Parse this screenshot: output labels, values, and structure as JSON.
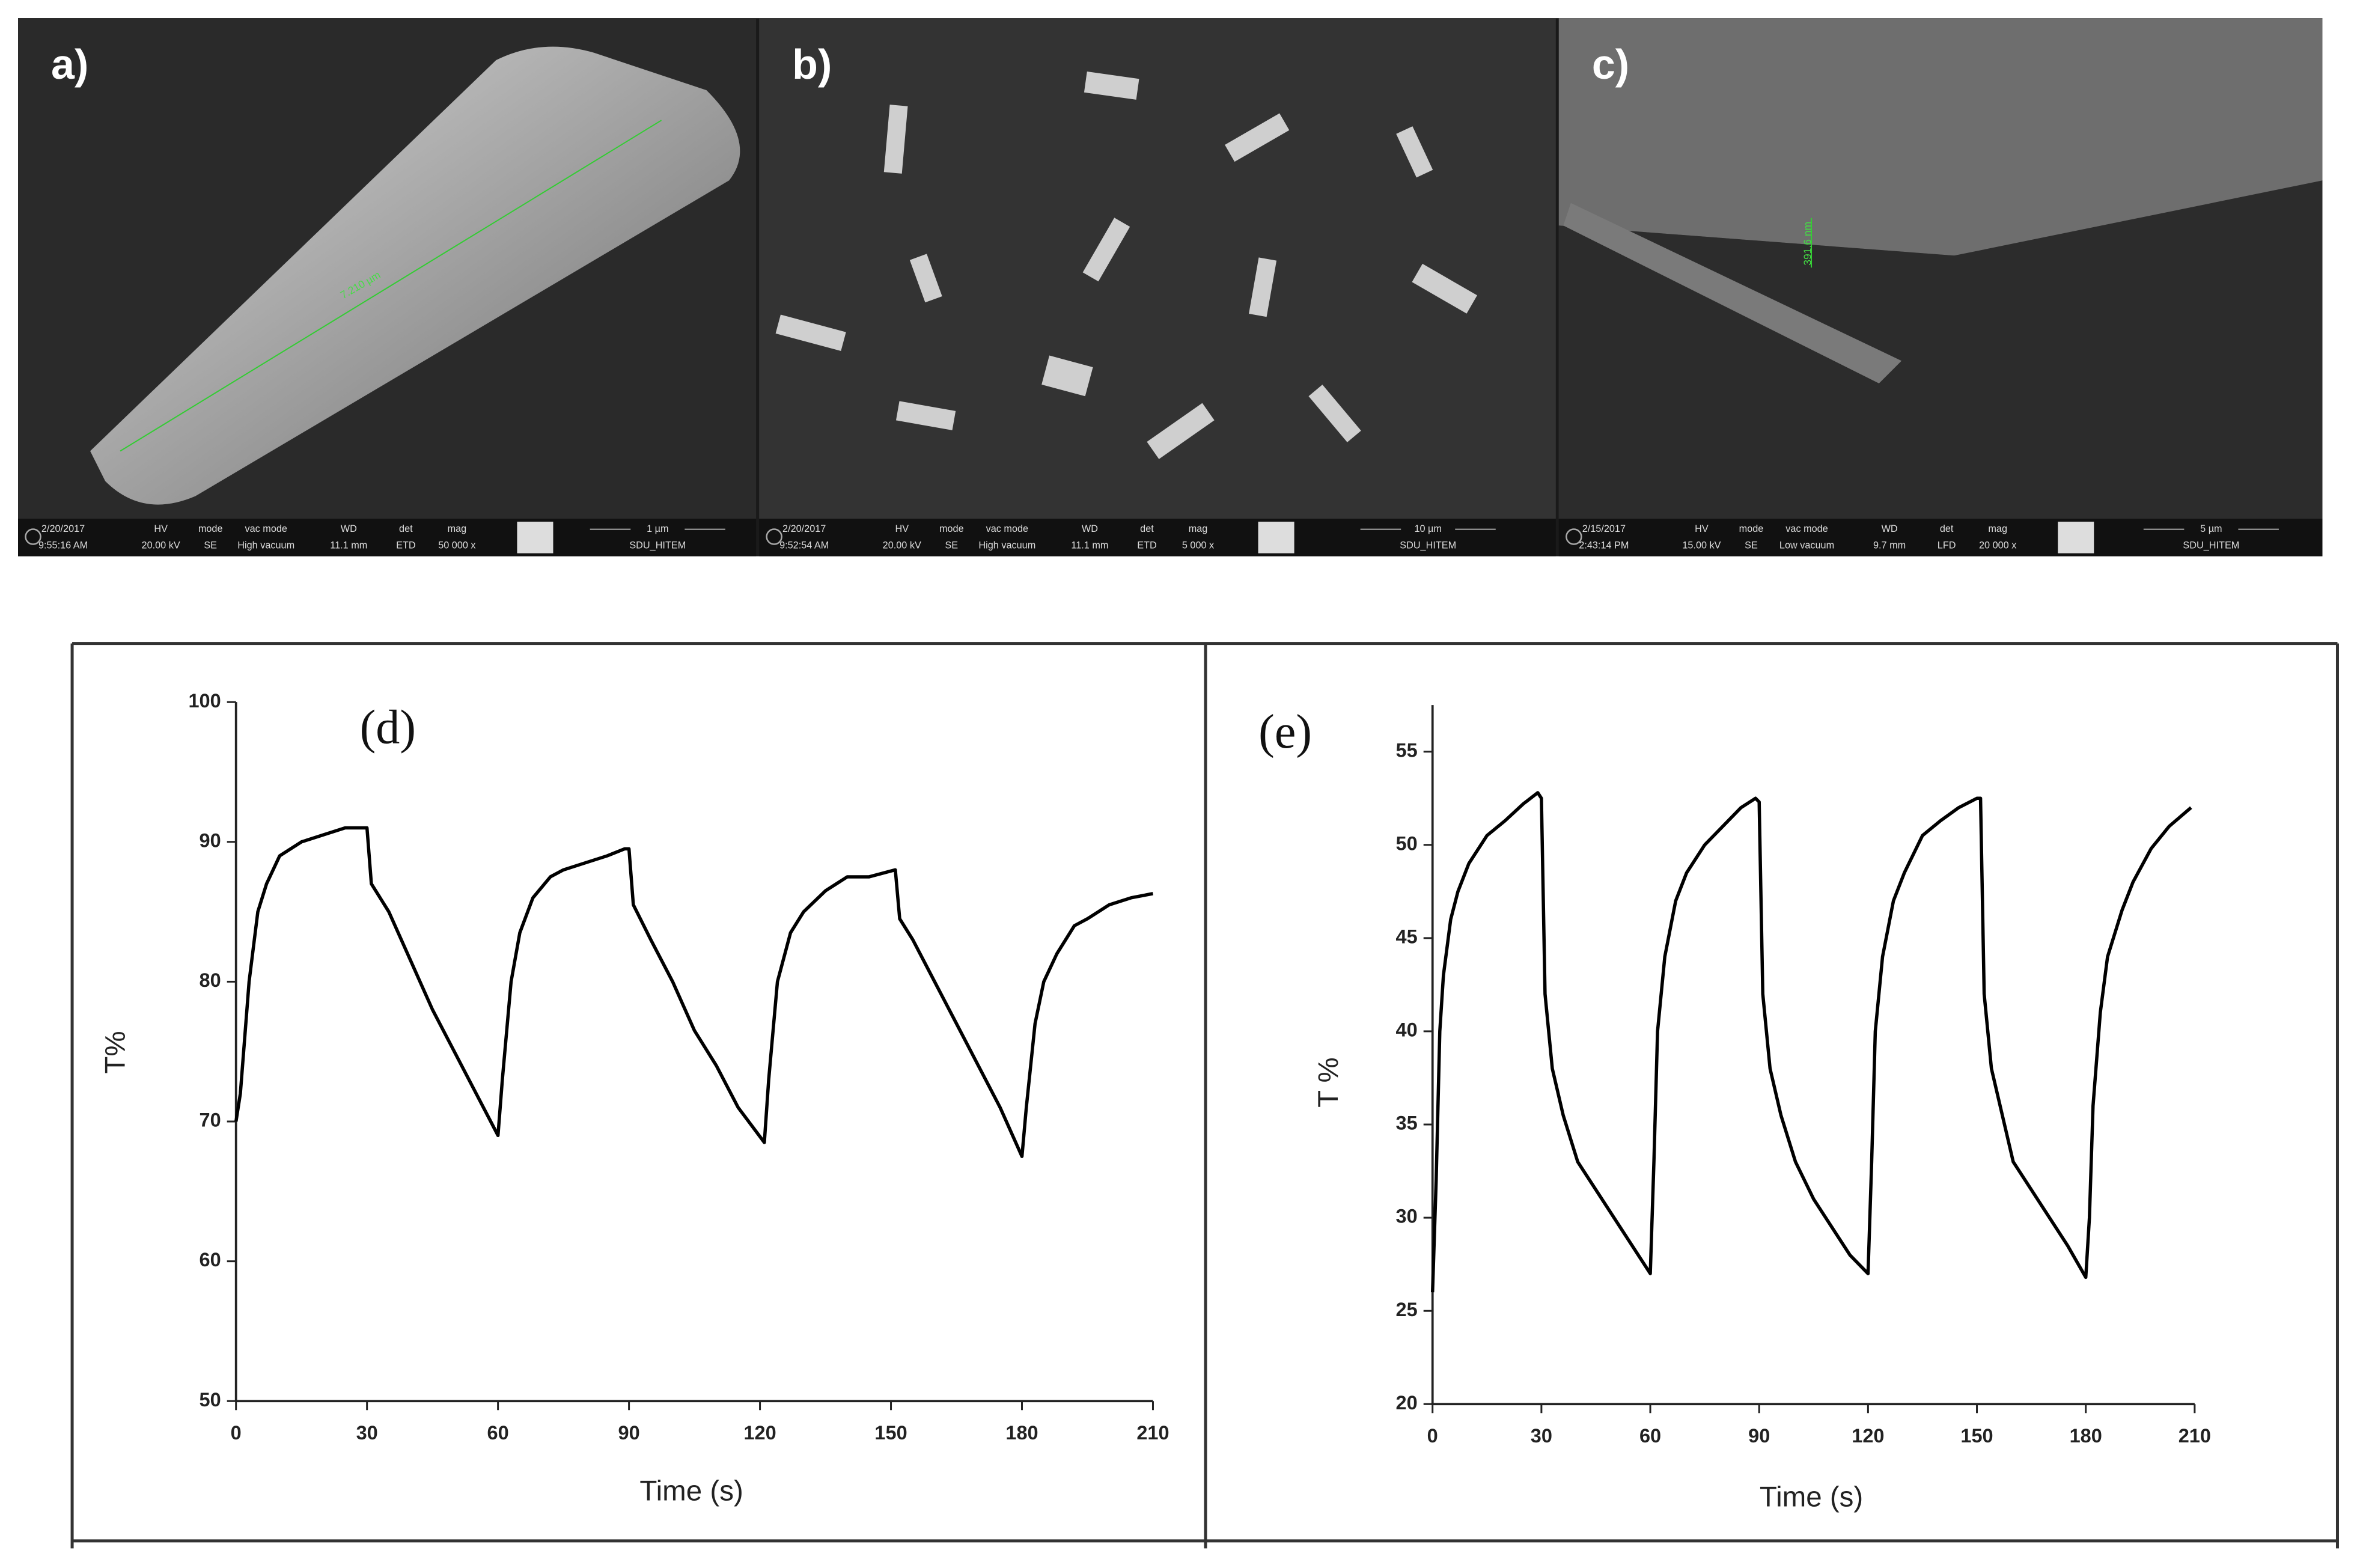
{
  "panels": [
    {
      "label": "a)",
      "measurement": "7.210 µm",
      "databar": [
        {
          "top": "2/20/2017",
          "bottom": "9:55:16 AM"
        },
        {
          "top": "HV",
          "bottom": "20.00 kV"
        },
        {
          "top": "mode",
          "bottom": "SE"
        },
        {
          "top": "vac mode",
          "bottom": "High vacuum"
        },
        {
          "top": "WD",
          "bottom": "11.1 mm"
        },
        {
          "top": "det",
          "bottom": "ETD"
        },
        {
          "top": "mag",
          "bottom": "50 000 x"
        }
      ],
      "scale": "1 µm",
      "lab": "SDU_HITEM"
    },
    {
      "label": "b)",
      "databar": [
        {
          "top": "2/20/2017",
          "bottom": "9:52:54 AM"
        },
        {
          "top": "HV",
          "bottom": "20.00 kV"
        },
        {
          "top": "mode",
          "bottom": "SE"
        },
        {
          "top": "vac mode",
          "bottom": "High vacuum"
        },
        {
          "top": "WD",
          "bottom": "11.1 mm"
        },
        {
          "top": "det",
          "bottom": "ETD"
        },
        {
          "top": "mag",
          "bottom": "5 000 x"
        }
      ],
      "scale": "10 µm",
      "lab": "SDU_HITEM"
    },
    {
      "label": "c)",
      "measurement": "391.6 nm",
      "databar": [
        {
          "top": "2/15/2017",
          "bottom": "2:43:14 PM"
        },
        {
          "top": "HV",
          "bottom": "15.00 kV"
        },
        {
          "top": "mode",
          "bottom": "SE"
        },
        {
          "top": "vac mode",
          "bottom": "Low vacuum"
        },
        {
          "top": "WD",
          "bottom": "9.7 mm"
        },
        {
          "top": "det",
          "bottom": "LFD"
        },
        {
          "top": "mag",
          "bottom": "20 000 x"
        }
      ],
      "scale": "5 µm",
      "lab": "SDU_HITEM"
    }
  ],
  "chart_data": [
    {
      "type": "line",
      "label": "(d)",
      "ylabel": "T%",
      "xlabel": "Time (s)",
      "color": "#000000",
      "xlim": [
        0,
        210
      ],
      "xticks": [
        0,
        30,
        60,
        90,
        120,
        150,
        180,
        210
      ],
      "ylim": [
        50,
        100
      ],
      "yticks": [
        50,
        60,
        70,
        80,
        90,
        100
      ],
      "x": [
        0,
        1,
        3,
        5,
        7,
        10,
        15,
        20,
        25,
        30,
        31,
        35,
        40,
        45,
        50,
        55,
        60,
        61,
        63,
        65,
        68,
        72,
        75,
        80,
        85,
        89,
        90,
        91,
        95,
        100,
        105,
        110,
        115,
        121,
        122,
        124,
        127,
        130,
        135,
        140,
        145,
        151,
        152,
        155,
        160,
        165,
        170,
        175,
        180,
        181,
        183,
        185,
        188,
        192,
        195,
        200,
        205,
        210
      ],
      "values": [
        70,
        72,
        80,
        85,
        87,
        89,
        90,
        90.5,
        91,
        91,
        87,
        85,
        81.5,
        78,
        75,
        72,
        69,
        73,
        80,
        83.5,
        86,
        87.5,
        88,
        88.5,
        89,
        89.5,
        89.5,
        85.5,
        83,
        80,
        76.5,
        74,
        71,
        68.5,
        73,
        80,
        83.5,
        85,
        86.5,
        87.5,
        87.5,
        88,
        84.5,
        83,
        80,
        77,
        74,
        71,
        67.5,
        71,
        77,
        80,
        82,
        84,
        84.5,
        85.5,
        86,
        86.3
      ]
    },
    {
      "type": "line",
      "label": "(e)",
      "ylabel": "T %",
      "xlabel": "Time (s)",
      "color": "#000000",
      "xlim": [
        0,
        210
      ],
      "xticks": [
        0,
        30,
        60,
        90,
        120,
        150,
        180,
        210
      ],
      "ylim": [
        20,
        57.5
      ],
      "yticks": [
        20,
        25,
        30,
        35,
        40,
        45,
        50,
        55
      ],
      "x": [
        0,
        1,
        2,
        3,
        5,
        7,
        10,
        15,
        20,
        25,
        29,
        30,
        31,
        33,
        36,
        40,
        45,
        50,
        55,
        60,
        61,
        62,
        64,
        67,
        70,
        75,
        80,
        85,
        89,
        90,
        91,
        93,
        96,
        100,
        105,
        110,
        115,
        120,
        121,
        122,
        124,
        127,
        130,
        135,
        140,
        145,
        150,
        151,
        152,
        154,
        157,
        160,
        165,
        170,
        175,
        180,
        181,
        182,
        184,
        186,
        190,
        193,
        198,
        203,
        209
      ],
      "values": [
        26,
        32,
        40,
        43,
        46,
        47.5,
        49,
        50.5,
        51.3,
        52.2,
        52.8,
        52.5,
        42,
        38,
        35.5,
        33,
        31.5,
        30,
        28.5,
        27,
        33,
        40,
        44,
        47,
        48.5,
        50,
        51,
        52,
        52.5,
        52.3,
        42,
        38,
        35.5,
        33,
        31,
        29.5,
        28,
        27,
        33,
        40,
        44,
        47,
        48.5,
        50.5,
        51.3,
        52,
        52.5,
        52.5,
        42,
        38,
        35.5,
        33,
        31.5,
        30,
        28.5,
        26.8,
        30,
        36,
        41,
        44,
        46.5,
        48,
        49.8,
        51,
        52
      ]
    }
  ]
}
